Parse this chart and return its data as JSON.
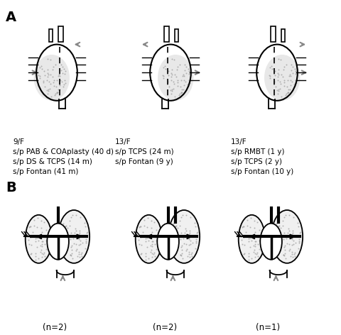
{
  "title": "",
  "background_color": "#ffffff",
  "panel_A_label": "A",
  "panel_B_label": "B",
  "panel_A_captions": [
    "9/F\ns/p PAB & COAplasty (40 d)\ns/p DS & TCPS (14 m)\ns/p Fontan (41 m)",
    "13/F\ns/p TCPS (24 m)\ns/p Fontan (9 y)",
    "13/F\ns/p RMBT (1 y)\ns/p TCPS (2 y)\ns/p Fontan (10 y)"
  ],
  "panel_B_captions": [
    "(n=2)",
    "(n=2)",
    "(n=1)"
  ],
  "text_color": "#000000",
  "gray_color": "#888888",
  "dot_color": "#cccccc",
  "line_color": "#000000",
  "figsize": [
    4.81,
    4.72
  ],
  "dpi": 100
}
